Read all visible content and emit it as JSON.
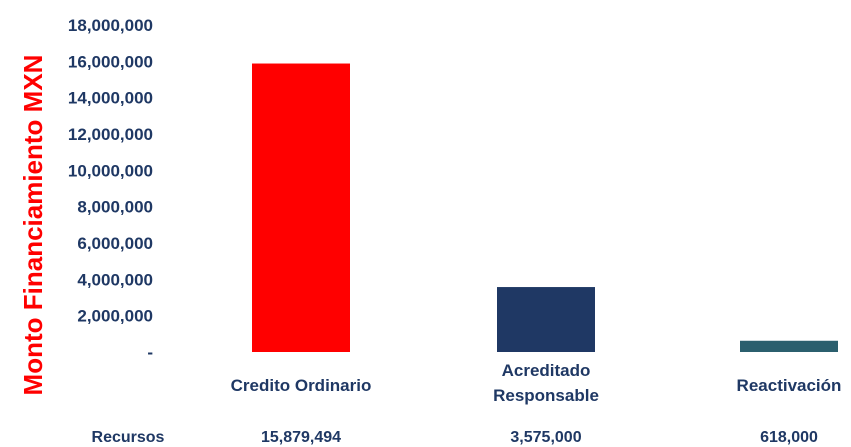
{
  "chart_data": {
    "type": "bar",
    "title": "",
    "xlabel": "",
    "ylabel": "Monto Financiamiento MXN",
    "ylim": [
      0,
      18000000
    ],
    "y_ticks": [
      0,
      2000000,
      4000000,
      6000000,
      8000000,
      10000000,
      12000000,
      14000000,
      16000000,
      18000000
    ],
    "y_tick_labels": [
      "-",
      "2,000,000",
      "4,000,000",
      "6,000,000",
      "8,000,000",
      "10,000,000",
      "12,000,000",
      "14,000,000",
      "16,000,000",
      "18,000,000"
    ],
    "categories": [
      "Credito Ordinario",
      "Acreditado Responsable",
      "Reactivación"
    ],
    "series": [
      {
        "name": "Recursos",
        "values": [
          15879494,
          3575000,
          618000
        ],
        "value_labels": [
          "15,879,494",
          "3,575,000",
          "618,000"
        ],
        "colors": [
          "#ff0000",
          "#1f3864",
          "#2b5f6e"
        ]
      }
    ],
    "grid": false,
    "legend": "none",
    "data_table": true
  }
}
